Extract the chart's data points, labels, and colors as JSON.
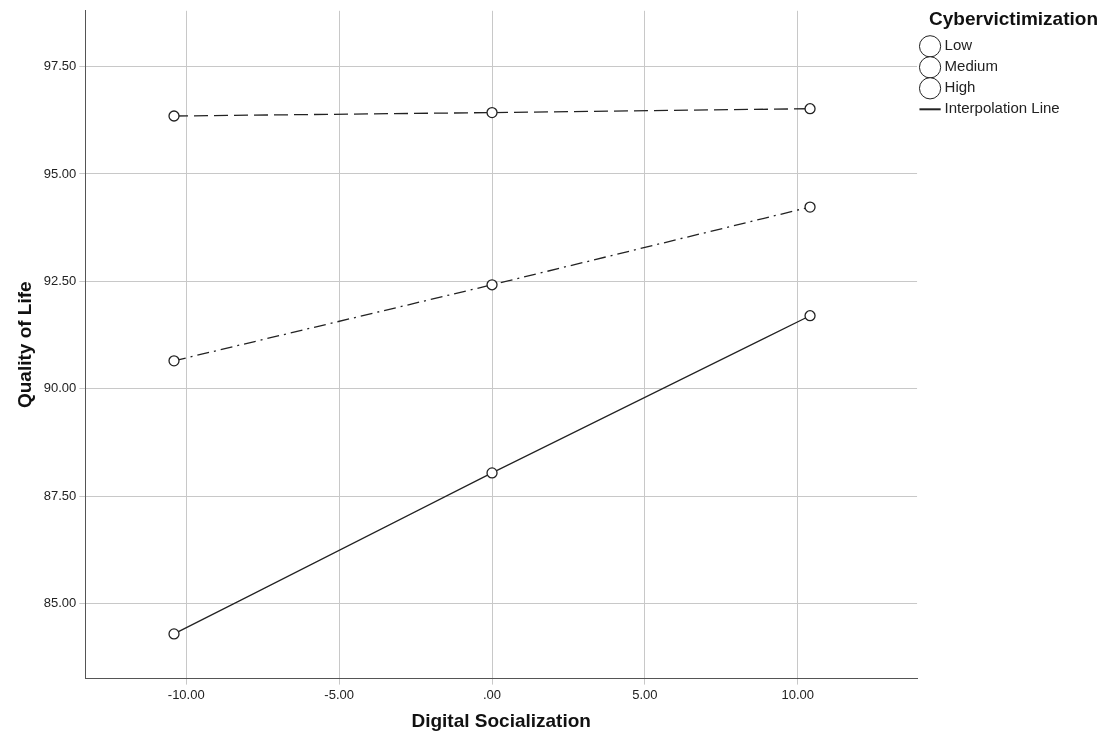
{
  "chart_data": {
    "type": "line",
    "xlabel": "Digital Socialization",
    "ylabel": "Quality of Life",
    "legend_title": "Cybervictimization",
    "x": [
      -10.4,
      0,
      10.4
    ],
    "series": [
      {
        "name": "Low",
        "color": "#222222",
        "line_style": "dashed",
        "values": [
          96.35,
          96.43,
          96.52
        ]
      },
      {
        "name": "Medium",
        "color": "#222222",
        "line_style": "dashdot",
        "values": [
          90.65,
          92.42,
          94.23
        ]
      },
      {
        "name": "High",
        "color": "#222222",
        "line_style": "solid",
        "values": [
          84.29,
          88.04,
          91.7
        ]
      }
    ],
    "annotations": [
      "Interpolation Line"
    ],
    "marker": "circle",
    "grid": true,
    "legend": "top right",
    "xlim": [
      -13.3,
      13.9
    ],
    "ylim": [
      83.25,
      98.8
    ],
    "xticks": [
      {
        "value": -10,
        "label": "-10.00"
      },
      {
        "value": -5,
        "label": "-5.00"
      },
      {
        "value": 0,
        "label": ".00"
      },
      {
        "value": 5,
        "label": "5.00"
      },
      {
        "value": 10,
        "label": "10.00"
      }
    ],
    "yticks": [
      {
        "value": 85,
        "label": "85.00"
      },
      {
        "value": 87.5,
        "label": "87.50"
      },
      {
        "value": 90,
        "label": "90.00"
      },
      {
        "value": 92.5,
        "label": "92.50"
      },
      {
        "value": 95,
        "label": "95.00"
      },
      {
        "value": 97.5,
        "label": "97.50"
      }
    ]
  }
}
